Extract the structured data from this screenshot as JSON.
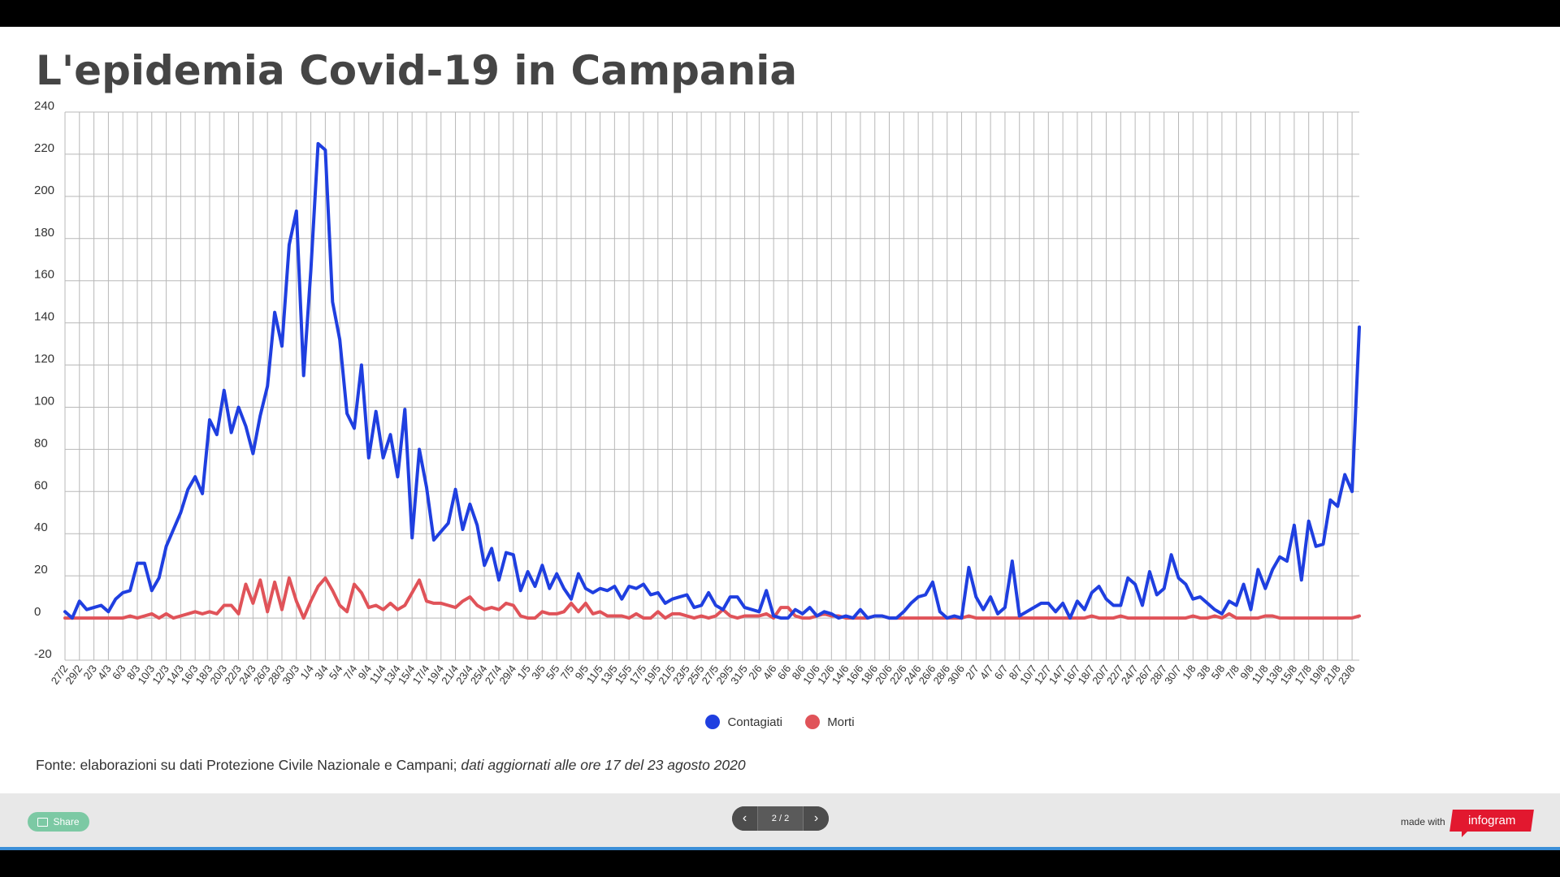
{
  "title": "L'epidemia Covid-19 in Campania",
  "source_normal": "Fonte: elaborazioni su dati Protezione Civile Nazionale e Campani; ",
  "source_italic": "dati aggiornati alle ore 17 del 23 agosto 2020",
  "footer": {
    "share_label": "Share",
    "page_label": "2 / 2",
    "prev_icon": "chevron-left-icon",
    "next_icon": "chevron-right-icon",
    "made_with": "made with",
    "brand": "infogram"
  },
  "colors": {
    "contagiati": "#1f3fe0",
    "morti": "#e05359",
    "brand": "#e2182f",
    "share": "#7cc9a4"
  },
  "chart_data": {
    "type": "line",
    "title": "L'epidemia Covid-19 in Campania",
    "ylim": [
      -20,
      240
    ],
    "yticks": [
      240,
      220,
      200,
      180,
      160,
      140,
      120,
      100,
      80,
      60,
      40,
      20,
      0,
      -20
    ],
    "grid": true,
    "legend_position": "bottom-center",
    "start_date": "2020-02-27",
    "end_date": "2020-08-23",
    "x_labels": [
      "27/2",
      "29/2",
      "2/3",
      "4/3",
      "6/3",
      "8/3",
      "10/3",
      "12/3",
      "14/3",
      "16/3",
      "18/3",
      "20/3",
      "22/3",
      "24/3",
      "26/3",
      "28/3",
      "30/3",
      "1/4",
      "3/4",
      "5/4",
      "7/4",
      "9/4",
      "11/4",
      "13/4",
      "15/4",
      "17/4",
      "19/4",
      "21/4",
      "23/4",
      "25/4",
      "27/4",
      "29/4",
      "1/5",
      "3/5",
      "5/5",
      "7/5",
      "9/5",
      "11/5",
      "13/5",
      "15/5",
      "17/5",
      "19/5",
      "21/5",
      "23/5",
      "25/5",
      "27/5",
      "29/5",
      "31/5",
      "2/6",
      "4/6",
      "6/6",
      "8/6",
      "10/6",
      "12/6",
      "14/6",
      "16/6",
      "18/6",
      "20/6",
      "22/6",
      "24/6",
      "26/6",
      "28/6",
      "30/6",
      "2/7",
      "4/7",
      "6/7",
      "8/7",
      "10/7",
      "12/7",
      "14/7",
      "16/7",
      "18/7",
      "20/7",
      "22/7",
      "24/7",
      "26/7",
      "28/7",
      "30/7",
      "1/8",
      "3/8",
      "5/8",
      "7/8",
      "9/8",
      "11/8",
      "13/8",
      "15/8",
      "17/8",
      "19/8",
      "21/8",
      "23/8"
    ],
    "series": [
      {
        "name": "Contagiati",
        "color": "#1f3fe0",
        "values": [
          3,
          0,
          8,
          4,
          5,
          6,
          3,
          9,
          12,
          13,
          26,
          26,
          13,
          19,
          34,
          42,
          50,
          61,
          67,
          59,
          94,
          87,
          108,
          88,
          100,
          91,
          78,
          96,
          110,
          145,
          129,
          177,
          193,
          115,
          165,
          225,
          222,
          150,
          132,
          97,
          90,
          120,
          76,
          98,
          76,
          87,
          67,
          99,
          38,
          80,
          62,
          37,
          41,
          45,
          61,
          42,
          54,
          44,
          25,
          33,
          18,
          31,
          30,
          13,
          22,
          15,
          25,
          14,
          21,
          14,
          9,
          21,
          14,
          12,
          14,
          13,
          15,
          9,
          15,
          14,
          16,
          11,
          12,
          7,
          9,
          10,
          11,
          5,
          6,
          12,
          6,
          4,
          10,
          10,
          5,
          4,
          3,
          13,
          1,
          0,
          0,
          4,
          2,
          5,
          1,
          3,
          2,
          0,
          1,
          0,
          4,
          0,
          1,
          1,
          0,
          0,
          3,
          7,
          10,
          11,
          17,
          3,
          0,
          1,
          0,
          24,
          10,
          4,
          10,
          2,
          5,
          27,
          1,
          3,
          5,
          7,
          7,
          3,
          7,
          0,
          8,
          4,
          12,
          15,
          9,
          6,
          6,
          19,
          16,
          6,
          22,
          11,
          14,
          30,
          19,
          16,
          9,
          10,
          7,
          4,
          2,
          8,
          6,
          16,
          4,
          23,
          14,
          23,
          29,
          27,
          44,
          18,
          46,
          34,
          35,
          56,
          53,
          68,
          60,
          138
        ]
      },
      {
        "name": "Morti",
        "color": "#e05359",
        "values": [
          0,
          0,
          0,
          0,
          0,
          0,
          0,
          0,
          0,
          1,
          0,
          1,
          2,
          0,
          2,
          0,
          1,
          2,
          3,
          2,
          3,
          2,
          6,
          6,
          2,
          16,
          7,
          18,
          3,
          17,
          4,
          19,
          8,
          0,
          8,
          15,
          19,
          13,
          6,
          3,
          16,
          12,
          5,
          6,
          4,
          7,
          4,
          6,
          12,
          18,
          8,
          7,
          7,
          6,
          5,
          8,
          10,
          6,
          4,
          5,
          4,
          7,
          6,
          1,
          0,
          0,
          3,
          2,
          2,
          3,
          7,
          3,
          7,
          2,
          3,
          1,
          1,
          1,
          0,
          2,
          0,
          0,
          3,
          0,
          2,
          2,
          1,
          0,
          1,
          0,
          1,
          4,
          1,
          0,
          1,
          1,
          1,
          2,
          0,
          5,
          5,
          1,
          0,
          0,
          1,
          2,
          1,
          1,
          0,
          0,
          0,
          0,
          1,
          1,
          0,
          0,
          0,
          0,
          0,
          0,
          0,
          0,
          0,
          0,
          0,
          1,
          0,
          0,
          0,
          0,
          0,
          0,
          0,
          0,
          0,
          0,
          0,
          0,
          0,
          0,
          0,
          0,
          1,
          0,
          0,
          0,
          1,
          0,
          0,
          0,
          0,
          0,
          0,
          0,
          0,
          0,
          1,
          0,
          0,
          1,
          0,
          2,
          0,
          0,
          0,
          0,
          1,
          1,
          0,
          0,
          0,
          0,
          0,
          0,
          0,
          0,
          0,
          0,
          0,
          1
        ]
      }
    ]
  }
}
